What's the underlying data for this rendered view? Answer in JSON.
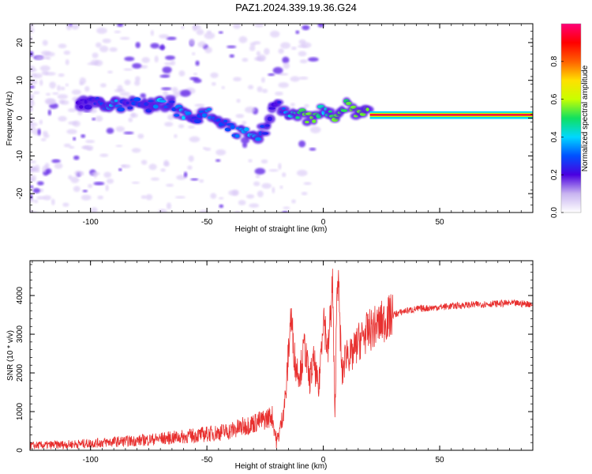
{
  "title": "PAZ1.2024.339.19.36.G24",
  "colors": {
    "snr_line": "#e8302f",
    "blob_primary": "#5a1ee6",
    "blob_light": "#d8c6f6",
    "colormap": [
      "#ffffff",
      "#c8b4f0",
      "#4a00e0",
      "#0050ff",
      "#00d8ff",
      "#10e060",
      "#c8ff00",
      "#ffe000",
      "#ff6000",
      "#ff0000",
      "#ff0078"
    ]
  },
  "chart_data": [
    {
      "type": "heatmap",
      "title": "PAZ1.2024.339.19.36.G24",
      "xlabel": "Height of straight line (km)",
      "ylabel": "Frequency (Hz)",
      "xlim": [
        -126,
        90
      ],
      "ylim": [
        -25,
        25
      ],
      "x_ticks": [
        -100,
        -50,
        0,
        50
      ],
      "y_ticks": [
        -20,
        -10,
        0,
        10,
        20
      ],
      "colorbar": {
        "label": "Normalized spectral amplitude",
        "range": [
          0,
          1
        ],
        "ticks": [
          0.0,
          0.2,
          0.4,
          0.6,
          0.8
        ]
      },
      "ridge": {
        "x": [
          -105,
          -100,
          -95,
          -90,
          -85,
          -80,
          -75,
          -70,
          -65,
          -60,
          -55,
          -50,
          -45,
          -40,
          -35,
          -30,
          -25,
          -20,
          -15,
          -10,
          -5,
          0,
          5,
          10,
          15,
          20,
          30,
          40,
          50,
          60,
          70,
          80,
          90
        ],
        "frequency": [
          4,
          4,
          4,
          3.5,
          4,
          4,
          3.5,
          4,
          3,
          1,
          0,
          2,
          0,
          -3,
          -4,
          -5,
          -3,
          4,
          0,
          1,
          0,
          2,
          1,
          3,
          1,
          1,
          1,
          1,
          1,
          1,
          1,
          1,
          1
        ],
        "amplitude": [
          0.1,
          0.12,
          0.2,
          0.3,
          0.12,
          0.2,
          0.15,
          0.3,
          0.15,
          0.3,
          0.15,
          0.25,
          0.2,
          0.2,
          0.25,
          0.3,
          0.15,
          0.1,
          0.3,
          0.4,
          0.5,
          0.3,
          0.45,
          0.4,
          0.6,
          0.8,
          0.95,
          1.0,
          1.0,
          1.0,
          1.0,
          1.0,
          1.0
        ]
      }
    },
    {
      "type": "line",
      "xlabel": "Height of straight line (km)",
      "ylabel": "SNR (10 * v/v)",
      "xlim": [
        -126,
        90
      ],
      "ylim": [
        0,
        4900
      ],
      "x_ticks": [
        -100,
        -50,
        0,
        50
      ],
      "y_ticks": [
        0,
        1000,
        2000,
        3000,
        4000
      ],
      "series": [
        {
          "x": [
            -126,
            -110,
            -100,
            -90,
            -80,
            -70,
            -60,
            -50,
            -40,
            -35,
            -30,
            -25,
            -22,
            -20,
            -18,
            -16,
            -14,
            -12,
            -10,
            -8,
            -6,
            -4,
            -2,
            0,
            2,
            4,
            5,
            6,
            7,
            8,
            10,
            12,
            15,
            18,
            20,
            25,
            30,
            35,
            40,
            50,
            60,
            70,
            80,
            90
          ],
          "values": [
            120,
            150,
            180,
            220,
            250,
            300,
            350,
            420,
            500,
            600,
            700,
            800,
            900,
            200,
            700,
            1500,
            3500,
            2200,
            2000,
            2700,
            1800,
            2300,
            1500,
            3600,
            2500,
            4300,
            700,
            4800,
            3500,
            1900,
            2600,
            2400,
            2800,
            3000,
            3100,
            3300,
            3500,
            3600,
            3650,
            3700,
            3750,
            3780,
            3800,
            3780
          ]
        }
      ]
    }
  ]
}
